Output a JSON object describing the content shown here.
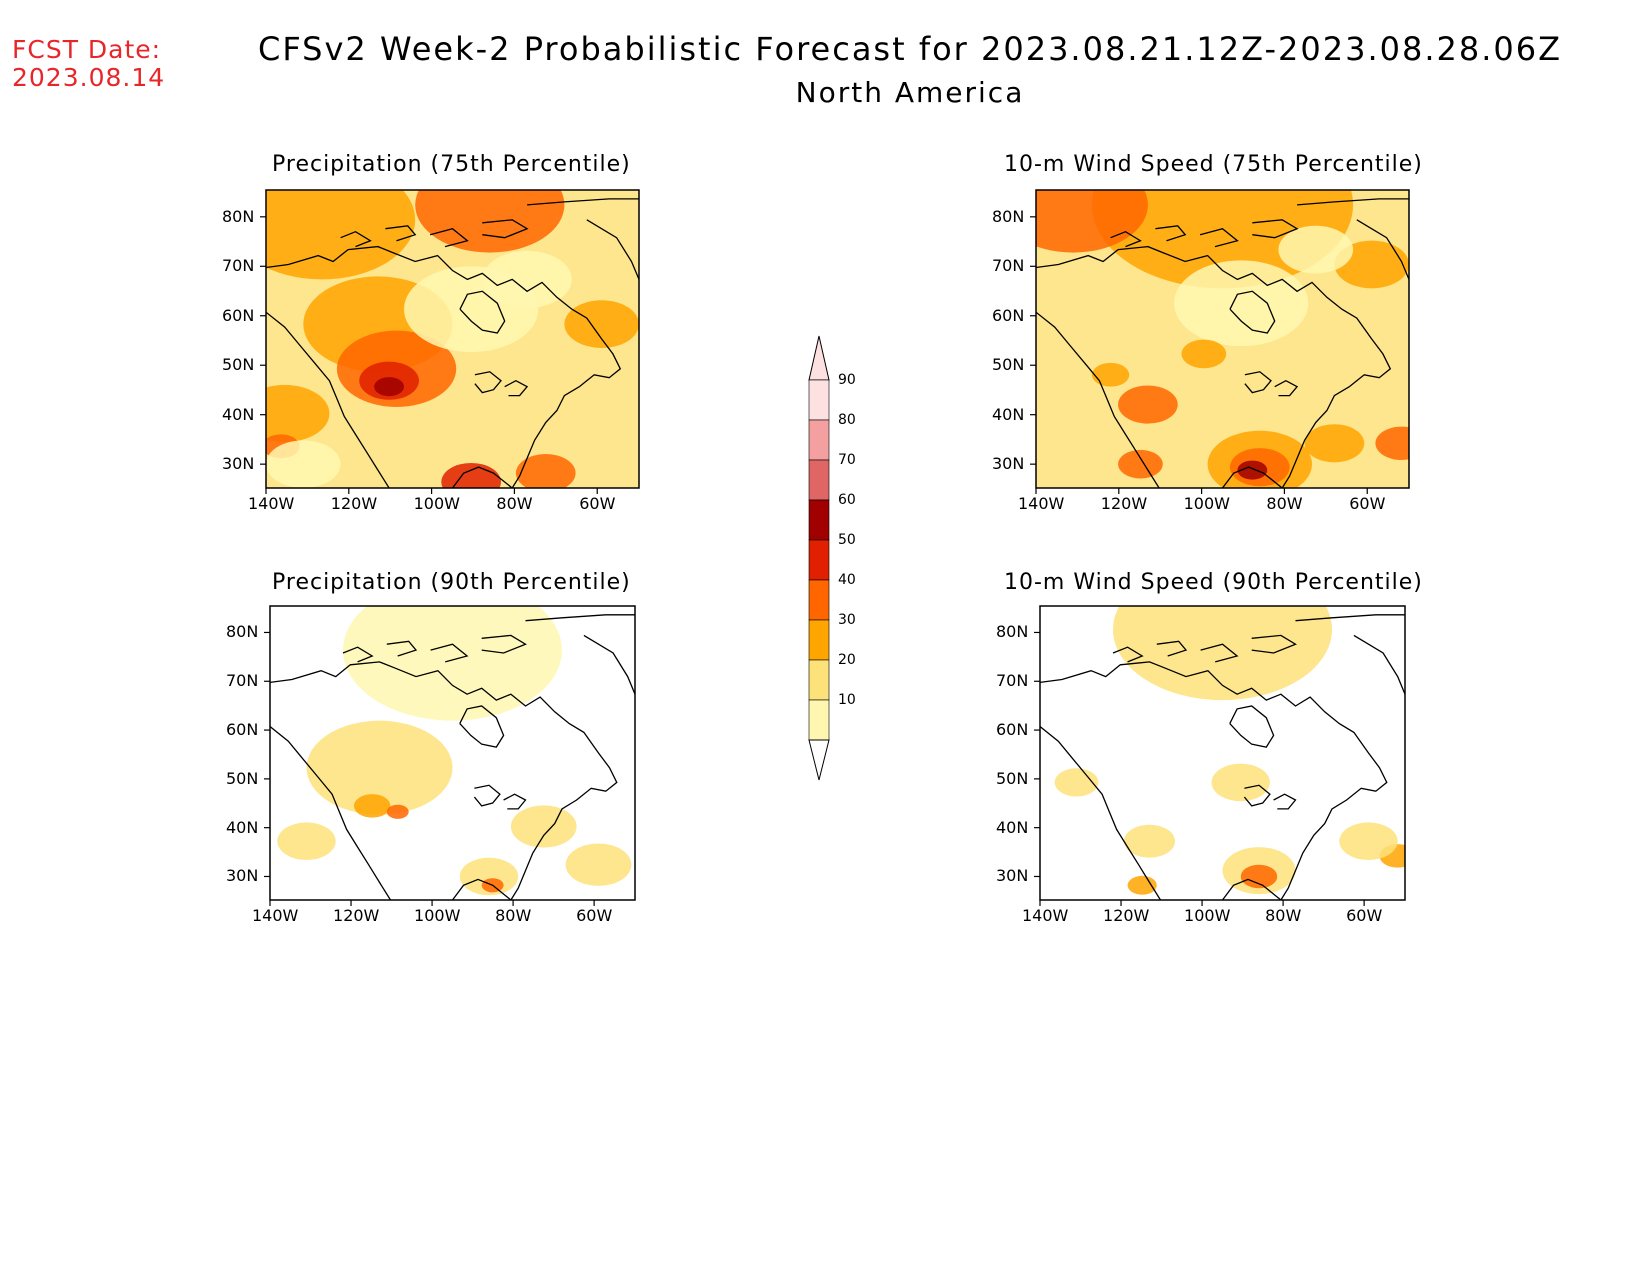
{
  "header": {
    "fcst_label": "FCST Date:",
    "fcst_date": "2023.08.14",
    "title": "CFSv2 Week-2 Probabilistic Forecast for 2023.08.21.12Z-2023.08.28.06Z",
    "subtitle": "North America"
  },
  "axes": {
    "lat_labels": [
      "80N",
      "70N",
      "60N",
      "50N",
      "40N",
      "30N"
    ],
    "lon_labels": [
      "140W",
      "120W",
      "100W",
      "80W",
      "60W"
    ]
  },
  "panels": [
    {
      "id": "precip75",
      "title": "Precipitation (75th Percentile)",
      "dominant": "orange"
    },
    {
      "id": "wind75",
      "title": "10-m Wind Speed (75th Percentile)",
      "dominant": "orange"
    },
    {
      "id": "precip90",
      "title": "Precipitation (90th Percentile)",
      "dominant": "yellow"
    },
    {
      "id": "wind90",
      "title": "10-m Wind Speed (90th Percentile)",
      "dominant": "yellow"
    }
  ],
  "colorbar": {
    "labels": [
      "90",
      "80",
      "70",
      "60",
      "50",
      "40",
      "30",
      "20",
      "10"
    ],
    "colors": [
      "#fde0e0",
      "#f4a0a0",
      "#e06666",
      "#a00000",
      "#e02000",
      "#ff6600",
      "#ffa500",
      "#fde27a",
      "#fff7b0"
    ]
  }
}
